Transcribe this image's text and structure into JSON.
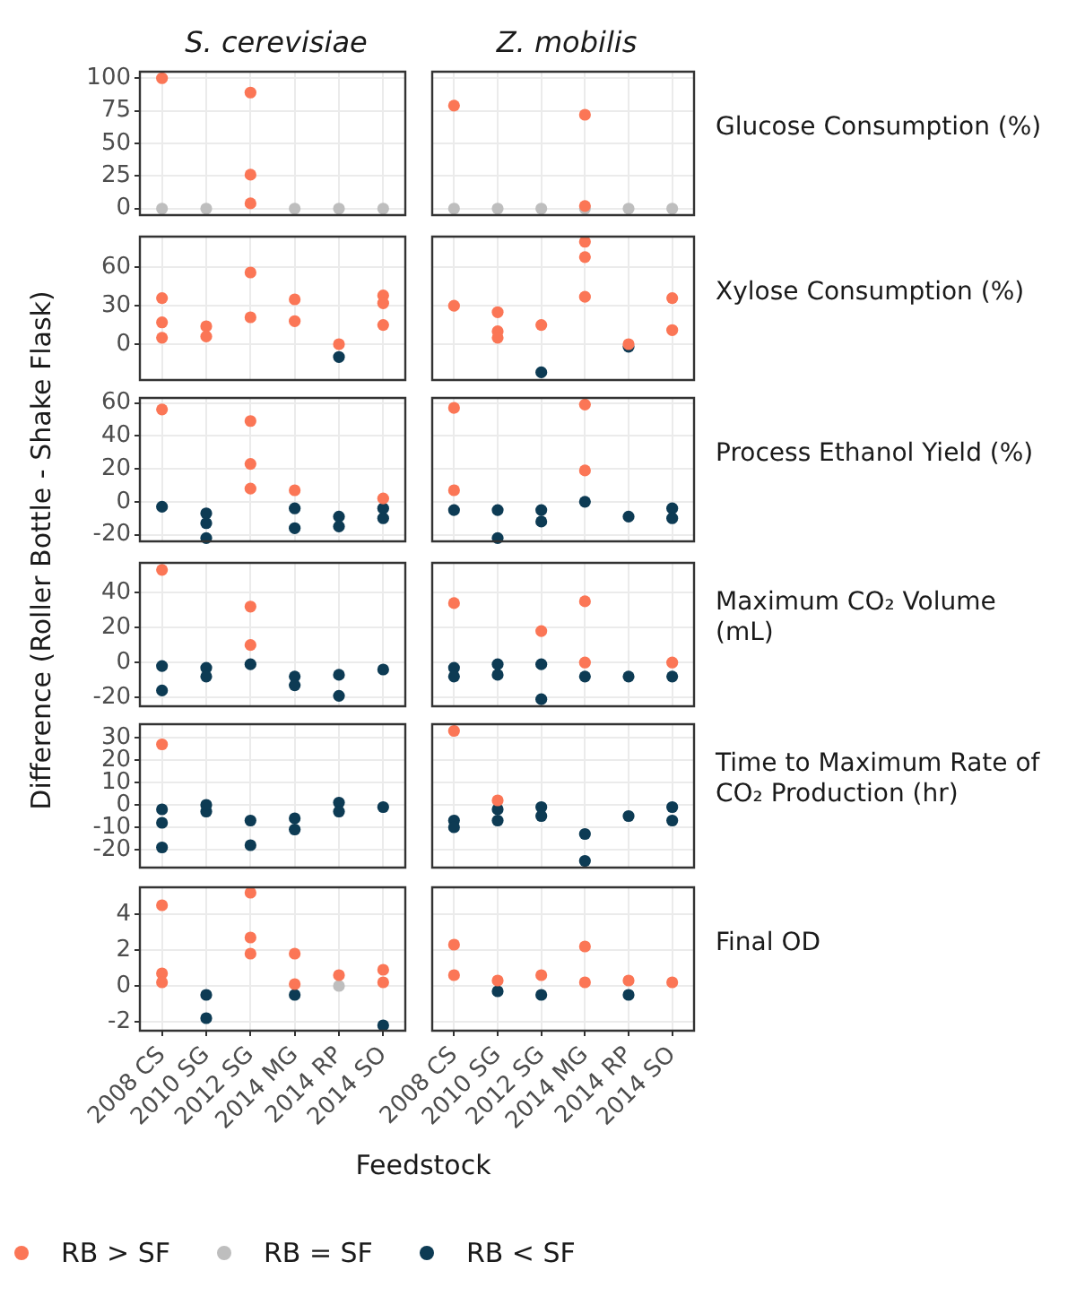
{
  "chart_data": [
    {
      "type": "scatter",
      "title": "S. cerevisiae",
      "ylabel": "Difference (Roller Bottle - Shake Flask)",
      "categories": [
        "2008 CS",
        "2010 SG",
        "2012 SG",
        "2014 MG",
        "2014 RP",
        "2014 SO"
      ],
      "ylim": [
        -5,
        105
      ],
      "yticks": [
        0,
        25,
        50,
        75,
        100
      ],
      "grid": true,
      "tick_labels": "y",
      "series": [
        {
          "color": "#fb7656",
          "x": [
            "2008 CS",
            "2012 SG",
            "2012 SG",
            "2012 SG"
          ],
          "values": [
            100,
            89,
            26,
            4
          ]
        },
        {
          "color": "#bebebe",
          "x": [
            "2008 CS",
            "2010 SG",
            "2014 MG",
            "2014 RP",
            "2014 SO"
          ],
          "values": [
            0,
            0,
            0,
            0,
            0
          ]
        }
      ]
    },
    {
      "type": "scatter",
      "title": "Z. mobilis",
      "annotations": [
        "Glucose Consumption (%)"
      ],
      "categories": [
        "2008 CS",
        "2010 SG",
        "2012 SG",
        "2014 MG",
        "2014 RP",
        "2014 SO"
      ],
      "ylim": [
        -5,
        105
      ],
      "yticks": [
        0,
        25,
        50,
        75,
        100
      ],
      "grid": true,
      "tick_labels": false,
      "series": [
        {
          "color": "#fb7656",
          "x": [
            "2008 CS",
            "2014 MG",
            "2014 MG"
          ],
          "values": [
            79,
            72,
            2
          ]
        },
        {
          "color": "#bebebe",
          "x": [
            "2008 CS",
            "2010 SG",
            "2012 SG",
            "2014 MG",
            "2014 RP",
            "2014 SO"
          ],
          "values": [
            0,
            0,
            0,
            0,
            0,
            0
          ]
        }
      ]
    },
    {
      "type": "scatter",
      "categories": [
        "2008 CS",
        "2010 SG",
        "2012 SG",
        "2014 MG",
        "2014 RP",
        "2014 SO"
      ],
      "ylim": [
        -28,
        84
      ],
      "yticks": [
        0,
        30,
        60
      ],
      "grid": true,
      "tick_labels": "y",
      "series": [
        {
          "color": "#fb7656",
          "x": [
            "2008 CS",
            "2008 CS",
            "2008 CS",
            "2010 SG",
            "2010 SG",
            "2012 SG",
            "2012 SG",
            "2014 MG",
            "2014 MG",
            "2014 RP",
            "2014 SO",
            "2014 SO",
            "2014 SO"
          ],
          "values": [
            36,
            17,
            5,
            14,
            6,
            56,
            21,
            35,
            18,
            0,
            38,
            32,
            15
          ]
        },
        {
          "color": "#0d3b54",
          "x": [
            "2014 RP"
          ],
          "values": [
            -10
          ]
        }
      ]
    },
    {
      "type": "scatter",
      "annotations": [
        "Xylose Consumption (%)"
      ],
      "categories": [
        "2008 CS",
        "2010 SG",
        "2012 SG",
        "2014 MG",
        "2014 RP",
        "2014 SO"
      ],
      "ylim": [
        -28,
        84
      ],
      "yticks": [
        0,
        30,
        60
      ],
      "grid": true,
      "tick_labels": false,
      "series": [
        {
          "color": "#fb7656",
          "x": [
            "2008 CS",
            "2010 SG",
            "2010 SG",
            "2010 SG",
            "2012 SG",
            "2014 MG",
            "2014 MG",
            "2014 MG",
            "2014 RP",
            "2014 SO",
            "2014 SO"
          ],
          "values": [
            30,
            25,
            10,
            5,
            15,
            80,
            68,
            37,
            0,
            36,
            11
          ]
        },
        {
          "color": "#0d3b54",
          "x": [
            "2012 SG",
            "2014 RP"
          ],
          "values": [
            -22,
            -2
          ]
        }
      ]
    },
    {
      "type": "scatter",
      "categories": [
        "2008 CS",
        "2010 SG",
        "2012 SG",
        "2014 MG",
        "2014 RP",
        "2014 SO"
      ],
      "ylim": [
        -24,
        63
      ],
      "yticks": [
        -20,
        0,
        20,
        40,
        60
      ],
      "grid": true,
      "tick_labels": "y",
      "series": [
        {
          "color": "#fb7656",
          "x": [
            "2008 CS",
            "2012 SG",
            "2012 SG",
            "2012 SG",
            "2014 MG",
            "2014 SO"
          ],
          "values": [
            56,
            49,
            23,
            8,
            7,
            2
          ]
        },
        {
          "color": "#0d3b54",
          "x": [
            "2008 CS",
            "2010 SG",
            "2010 SG",
            "2010 SG",
            "2014 MG",
            "2014 MG",
            "2014 RP",
            "2014 RP",
            "2014 SO",
            "2014 SO"
          ],
          "values": [
            -3,
            -13,
            -7,
            -22,
            -4,
            -16,
            -9,
            -15,
            -4,
            -10
          ]
        }
      ]
    },
    {
      "type": "scatter",
      "annotations": [
        "Process Ethanol Yield (%)"
      ],
      "categories": [
        "2008 CS",
        "2010 SG",
        "2012 SG",
        "2014 MG",
        "2014 RP",
        "2014 SO"
      ],
      "ylim": [
        -24,
        63
      ],
      "yticks": [
        -20,
        0,
        20,
        40,
        60
      ],
      "grid": true,
      "tick_labels": false,
      "series": [
        {
          "color": "#fb7656",
          "x": [
            "2008 CS",
            "2008 CS",
            "2014 MG",
            "2014 MG"
          ],
          "values": [
            57,
            7,
            59,
            19
          ]
        },
        {
          "color": "#0d3b54",
          "x": [
            "2008 CS",
            "2010 SG",
            "2010 SG",
            "2012 SG",
            "2012 SG",
            "2014 MG",
            "2014 RP",
            "2014 SO",
            "2014 SO"
          ],
          "values": [
            -5,
            -5,
            -22,
            -5,
            -12,
            0,
            -9,
            -4,
            -10
          ]
        }
      ]
    },
    {
      "type": "scatter",
      "categories": [
        "2008 CS",
        "2010 SG",
        "2012 SG",
        "2014 MG",
        "2014 RP",
        "2014 SO"
      ],
      "ylim": [
        -25,
        57
      ],
      "yticks": [
        -20,
        0,
        20,
        40
      ],
      "grid": true,
      "tick_labels": "y",
      "series": [
        {
          "color": "#fb7656",
          "x": [
            "2008 CS",
            "2012 SG",
            "2012 SG"
          ],
          "values": [
            53,
            32,
            10
          ]
        },
        {
          "color": "#0d3b54",
          "x": [
            "2008 CS",
            "2008 CS",
            "2010 SG",
            "2010 SG",
            "2012 SG",
            "2014 MG",
            "2014 MG",
            "2014 RP",
            "2014 RP",
            "2014 SO"
          ],
          "values": [
            -2,
            -16,
            -3,
            -8,
            -1,
            -8,
            -13,
            -7,
            -19,
            -4
          ]
        }
      ]
    },
    {
      "type": "scatter",
      "annotations": [
        "Maximum CO₂ Volume (mL)"
      ],
      "categories": [
        "2008 CS",
        "2010 SG",
        "2012 SG",
        "2014 MG",
        "2014 RP",
        "2014 SO"
      ],
      "ylim": [
        -25,
        57
      ],
      "yticks": [
        -20,
        0,
        20,
        40
      ],
      "grid": true,
      "tick_labels": false,
      "series": [
        {
          "color": "#fb7656",
          "x": [
            "2008 CS",
            "2012 SG",
            "2014 MG",
            "2014 MG",
            "2014 SO"
          ],
          "values": [
            34,
            18,
            35,
            0,
            0
          ]
        },
        {
          "color": "#0d3b54",
          "x": [
            "2008 CS",
            "2008 CS",
            "2010 SG",
            "2010 SG",
            "2012 SG",
            "2012 SG",
            "2014 MG",
            "2014 RP",
            "2014 SO"
          ],
          "values": [
            -3,
            -8,
            -7,
            -1,
            -1,
            -21,
            -8,
            -8,
            -8
          ]
        }
      ]
    },
    {
      "type": "scatter",
      "categories": [
        "2008 CS",
        "2010 SG",
        "2012 SG",
        "2014 MG",
        "2014 RP",
        "2014 SO"
      ],
      "ylim": [
        -28,
        36
      ],
      "yticks": [
        -20,
        -10,
        0,
        10,
        20,
        30
      ],
      "grid": true,
      "tick_labels": "y",
      "series": [
        {
          "color": "#fb7656",
          "x": [
            "2008 CS"
          ],
          "values": [
            27
          ]
        },
        {
          "color": "#0d3b54",
          "x": [
            "2008 CS",
            "2008 CS",
            "2008 CS",
            "2010 SG",
            "2010 SG",
            "2012 SG",
            "2012 SG",
            "2014 MG",
            "2014 MG",
            "2014 RP",
            "2014 RP",
            "2014 SO"
          ],
          "values": [
            -2,
            -8,
            -19,
            -3,
            0,
            -7,
            -18,
            -6,
            -11,
            1,
            -3,
            -1
          ]
        }
      ]
    },
    {
      "type": "scatter",
      "annotations": [
        "Time to Maximum Rate of CO₂ Production (hr)"
      ],
      "categories": [
        "2008 CS",
        "2010 SG",
        "2012 SG",
        "2014 MG",
        "2014 RP",
        "2014 SO"
      ],
      "ylim": [
        -28,
        36
      ],
      "yticks": [
        -20,
        -10,
        0,
        10,
        20,
        30
      ],
      "grid": true,
      "tick_labels": false,
      "series": [
        {
          "color": "#fb7656",
          "x": [
            "2008 CS",
            "2010 SG"
          ],
          "values": [
            33,
            2
          ]
        },
        {
          "color": "#0d3b54",
          "x": [
            "2008 CS",
            "2008 CS",
            "2010 SG",
            "2010 SG",
            "2012 SG",
            "2012 SG",
            "2014 MG",
            "2014 MG",
            "2014 RP",
            "2014 SO",
            "2014 SO"
          ],
          "values": [
            -7,
            -10,
            -2,
            -7,
            -1,
            -5,
            -13,
            -25,
            -5,
            -1,
            -7
          ]
        }
      ]
    },
    {
      "type": "scatter",
      "xlabel": "Feedstock",
      "legend": "bottom",
      "categories": [
        "2008 CS",
        "2010 SG",
        "2012 SG",
        "2014 MG",
        "2014 RP",
        "2014 SO"
      ],
      "ylim": [
        -2.5,
        5.5
      ],
      "yticks": [
        -2,
        0,
        2,
        4
      ],
      "grid": true,
      "series": [
        {
          "name": "RB > SF",
          "color": "#fb7656",
          "x": [
            "2008 CS",
            "2008 CS",
            "2008 CS",
            "2012 SG",
            "2012 SG",
            "2012 SG",
            "2014 MG",
            "2014 MG",
            "2014 RP",
            "2014 SO",
            "2014 SO"
          ],
          "values": [
            4.5,
            0.7,
            0.2,
            5.2,
            2.7,
            1.8,
            1.8,
            0.1,
            0.6,
            0.9,
            0.2
          ]
        },
        {
          "name": "RB = SF",
          "color": "#bebebe",
          "x": [
            "2014 RP"
          ],
          "values": [
            0
          ]
        },
        {
          "name": "RB < SF",
          "color": "#0d3b54",
          "x": [
            "2010 SG",
            "2010 SG",
            "2014 MG",
            "2014 SO"
          ],
          "values": [
            -0.5,
            -1.8,
            -0.5,
            -2.2
          ]
        }
      ]
    },
    {
      "type": "scatter",
      "annotations": [
        "Final OD"
      ],
      "categories": [
        "2008 CS",
        "2010 SG",
        "2012 SG",
        "2014 MG",
        "2014 RP",
        "2014 SO"
      ],
      "ylim": [
        -2.5,
        5.5
      ],
      "yticks": [
        -2,
        0,
        2,
        4
      ],
      "grid": true,
      "tick_labels": "x",
      "series": [
        {
          "color": "#fb7656",
          "x": [
            "2008 CS",
            "2008 CS",
            "2010 SG",
            "2012 SG",
            "2014 MG",
            "2014 MG",
            "2014 RP",
            "2014 SO"
          ],
          "values": [
            2.3,
            0.6,
            0.3,
            0.6,
            2.2,
            0.2,
            0.3,
            0.2
          ]
        },
        {
          "color": "#0d3b54",
          "x": [
            "2010 SG",
            "2012 SG",
            "2014 RP"
          ],
          "values": [
            -0.3,
            -0.5,
            -0.5
          ]
        }
      ]
    }
  ]
}
